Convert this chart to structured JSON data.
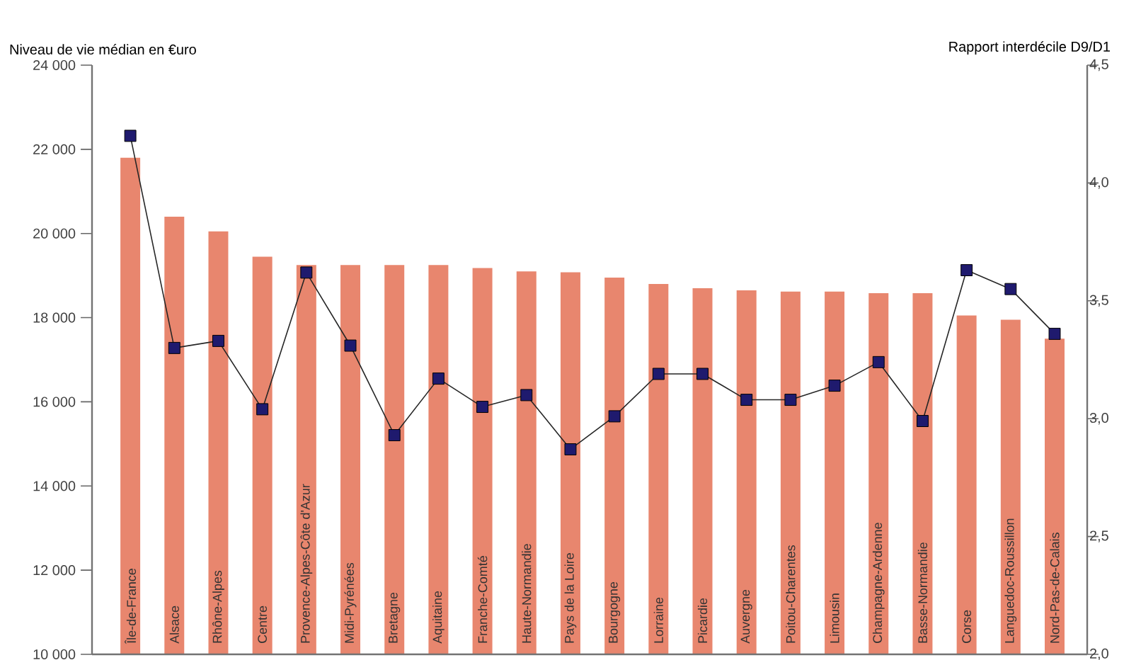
{
  "chart_data": {
    "type": "bar",
    "ylabel": "Niveau de vie médian en €uro",
    "y2label": "Rapport interdécile D9/D1",
    "categories": [
      "Île-de-France",
      "Alsace",
      "Rhône-Alpes",
      "Centre",
      "Provence-Alpes-Côte d'Azur",
      "Midi-Pyrénées",
      "Bretagne",
      "Aquitaine",
      "Franche-Comté",
      "Haute-Normandie",
      "Pays de la Loire",
      "Bourgogne",
      "Lorraine",
      "Picardie",
      "Auvergne",
      "Poitou-Charentes",
      "Limousin",
      "Champagne-Ardenne",
      "Basse-Normandie",
      "Corse",
      "Languedoc-Roussillon",
      "Nord-Pas-de-Calais"
    ],
    "series": [
      {
        "color": "#e8866e",
        "values": [
          21800,
          20400,
          20050,
          19450,
          19250,
          19250,
          19250,
          19250,
          19180,
          19100,
          19080,
          18950,
          18800,
          18700,
          18650,
          18620,
          18620,
          18580,
          18580,
          18050,
          17950,
          17500
        ]
      },
      {
        "type": "line",
        "axis": "y2",
        "color": "#1f1a6e",
        "marker": "square",
        "values": [
          4.2,
          3.3,
          3.33,
          3.04,
          3.62,
          3.31,
          2.93,
          3.17,
          3.05,
          3.1,
          2.87,
          3.01,
          3.19,
          3.19,
          3.08,
          3.08,
          3.14,
          3.24,
          2.99,
          3.63,
          3.55,
          3.36
        ]
      }
    ],
    "ylim": [
      10000,
      24000
    ],
    "yticks": [
      {
        "value": 10000,
        "label": "10 000"
      },
      {
        "value": 12000,
        "label": "12 000"
      },
      {
        "value": 14000,
        "label": "14 000"
      },
      {
        "value": 16000,
        "label": "16 000"
      },
      {
        "value": 18000,
        "label": "18 000"
      },
      {
        "value": 20000,
        "label": "20 000"
      },
      {
        "value": 22000,
        "label": "22 000"
      },
      {
        "value": 24000,
        "label": "24 000"
      }
    ],
    "y2lim": [
      2,
      4.5
    ],
    "y2ticks": [
      {
        "value": 2,
        "label": "2,0"
      },
      {
        "value": 2.5,
        "label": "2,5"
      },
      {
        "value": 3,
        "label": "3,0"
      },
      {
        "value": 3.5,
        "label": "3,5"
      },
      {
        "value": 4,
        "label": "4,0"
      },
      {
        "value": 4.5,
        "label": "4,5"
      }
    ]
  }
}
